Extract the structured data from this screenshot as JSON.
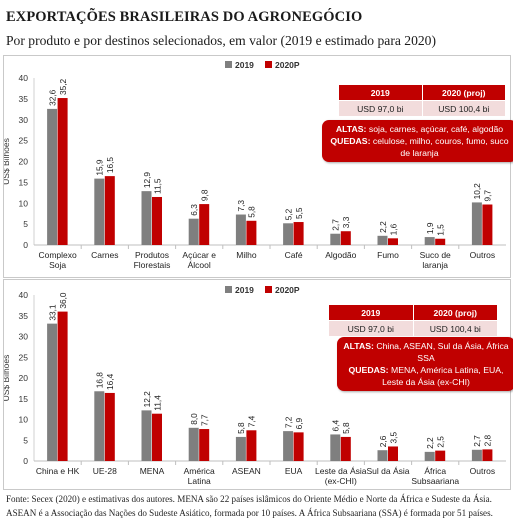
{
  "title": "EXPORTAÇÕES BRASILEIRAS DO AGRONEGÓCIO",
  "subtitle": "Por produto e por destinos selecionados, em valor (2019 e estimado para 2020)",
  "colors": {
    "series_2019": "#7f7f7f",
    "series_2020": "#c00000",
    "accent": "#c00000"
  },
  "chart_data": [
    {
      "type": "bar",
      "ylabel": "US$ Bilhões",
      "ylim": [
        0,
        40
      ],
      "yticks": [
        0,
        5,
        10,
        15,
        20,
        25,
        30,
        35,
        40
      ],
      "legend_position": "top-center",
      "categories": [
        "Complexo Soja",
        "Carnes",
        "Produtos Florestais",
        "Açúcar e Álcool",
        "Milho",
        "Café",
        "Algodão",
        "Fumo",
        "Suco de laranja",
        "Outros"
      ],
      "category_lines": [
        [
          "Complexo",
          "Soja"
        ],
        [
          "Carnes"
        ],
        [
          "Produtos",
          "Florestais"
        ],
        [
          "Açúcar e",
          "Álcool"
        ],
        [
          "Milho"
        ],
        [
          "Café"
        ],
        [
          "Algodão"
        ],
        [
          "Fumo"
        ],
        [
          "Suco de",
          "laranja"
        ],
        [
          "Outros"
        ]
      ],
      "series": [
        {
          "name": "2019",
          "values": [
            32.6,
            15.9,
            12.9,
            6.3,
            7.3,
            5.2,
            2.7,
            2.2,
            1.9,
            10.2
          ],
          "labels": [
            "32,6",
            "15,9",
            "12,9",
            "6,3",
            "7,3",
            "5,2",
            "2,7",
            "2,2",
            "1,9",
            "10,2"
          ]
        },
        {
          "name": "2020P",
          "values": [
            35.2,
            16.5,
            11.5,
            9.8,
            5.8,
            5.5,
            3.3,
            1.6,
            1.5,
            9.7
          ],
          "labels": [
            "35,2",
            "16,5",
            "11,5",
            "9,8",
            "5,8",
            "5,5",
            "3,3",
            "1,6",
            "1,5",
            "9,7"
          ]
        }
      ],
      "totals_table": {
        "headers": [
          "2019",
          "2020 (proj)"
        ],
        "values": [
          "USD 97,0 bi",
          "USD 100,4 bi"
        ]
      },
      "callout": {
        "altas_label": "ALTAS:",
        "altas_text": " soja, carnes, açúcar, café, algodão",
        "quedas_label": "QUEDAS:",
        "quedas_text": " celulose, milho, couros, fumo, suco de laranja"
      }
    },
    {
      "type": "bar",
      "ylabel": "US$ Bilhões",
      "ylim": [
        0,
        40
      ],
      "yticks": [
        0,
        5,
        10,
        15,
        20,
        25,
        30,
        35,
        40
      ],
      "legend_position": "top-center",
      "categories": [
        "China e HK",
        "UE-28",
        "MENA",
        "América Latina",
        "ASEAN",
        "EUA",
        "Leste da Ásia (ex-CHI)",
        "Sul da Ásia",
        "África Subsaariana",
        "Outros"
      ],
      "category_lines": [
        [
          "China e HK"
        ],
        [
          "UE-28"
        ],
        [
          "MENA"
        ],
        [
          "América",
          "Latina"
        ],
        [
          "ASEAN"
        ],
        [
          "EUA"
        ],
        [
          "Leste da Ásia",
          "(ex-CHI)"
        ],
        [
          "Sul da Ásia"
        ],
        [
          "África",
          "Subsaariana"
        ],
        [
          "Outros"
        ]
      ],
      "series": [
        {
          "name": "2019",
          "values": [
            33.1,
            16.8,
            12.2,
            8.0,
            5.8,
            7.2,
            6.4,
            2.6,
            2.2,
            2.7
          ],
          "labels": [
            "33,1",
            "16,8",
            "12,2",
            "8,0",
            "5,8",
            "7,2",
            "6,4",
            "2,6",
            "2,2",
            "2,7"
          ]
        },
        {
          "name": "2020P",
          "values": [
            36.0,
            16.4,
            11.4,
            7.7,
            7.4,
            6.9,
            5.8,
            3.5,
            2.5,
            2.8
          ],
          "labels": [
            "36,0",
            "16,4",
            "11,4",
            "7,7",
            "7,4",
            "6,9",
            "5,8",
            "3,5",
            "2,5",
            "2,8"
          ]
        }
      ],
      "totals_table": {
        "headers": [
          "2019",
          "2020 (proj)"
        ],
        "values": [
          "USD 97,0 bi",
          "USD 100,4 bi"
        ]
      },
      "callout": {
        "altas_label": "ALTAS:",
        "altas_text": " China, ASEAN, Sul da Ásia, África SSA",
        "quedas_label": "QUEDAS:",
        "quedas_text": " MENA, América Latina, EUA, Leste da Ásia (ex-CHI)"
      }
    }
  ],
  "footnote": "Fonte: Secex (2020) e estimativas dos autores. MENA são 22 países islâmicos do Oriente Médio e Norte da África e Sudeste da Ásia. ASEAN é a Associação das Nações do Sudeste Asiático, formada por 10 países. A África Subsaariana (SSA) é formada por 51 países."
}
